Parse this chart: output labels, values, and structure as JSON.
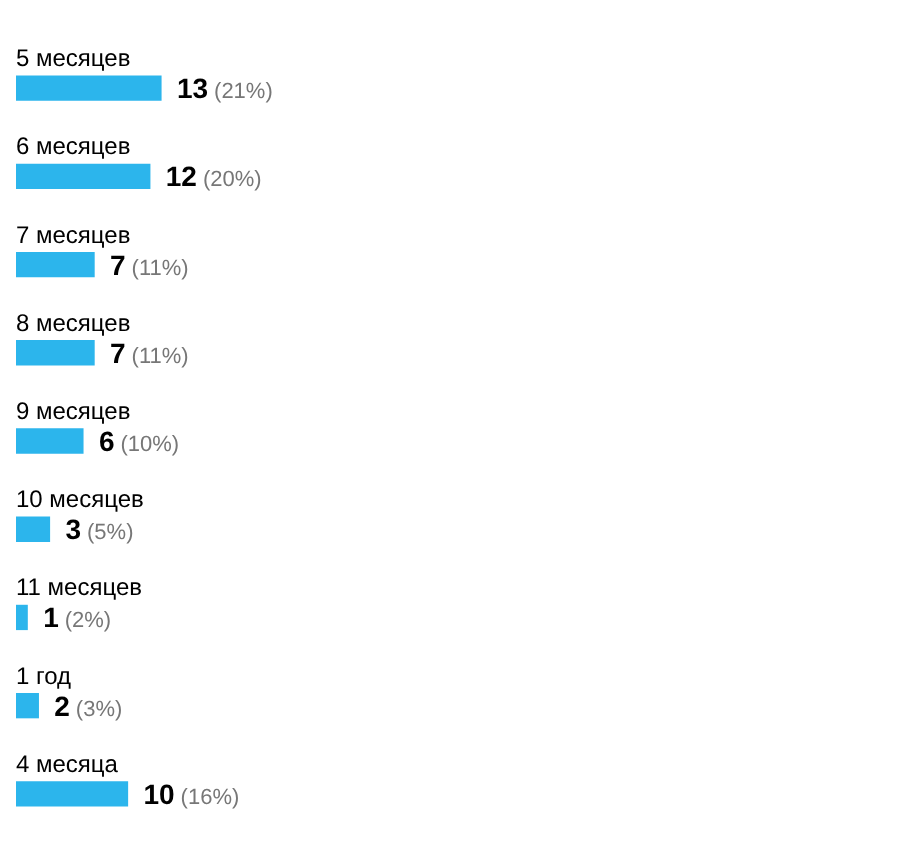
{
  "chart_data": {
    "type": "bar",
    "orientation": "horizontal",
    "categories": [
      "5 месяцев",
      "6 месяцев",
      "7 месяцев",
      "8 месяцев",
      "9 месяцев",
      "10 месяцев",
      "11 месяцев",
      "1 год",
      "4 месяца"
    ],
    "values": [
      13,
      12,
      7,
      7,
      6,
      3,
      1,
      2,
      10
    ],
    "color": "#2cb5ec",
    "value_labels": [
      "13 (21%)",
      "12 (20%)",
      "7 (11%)",
      "7 (11%)",
      "6 (10%)",
      "3 (5%)",
      "1 (2%)",
      "2 (3%)",
      "10 (16%)"
    ]
  }
}
